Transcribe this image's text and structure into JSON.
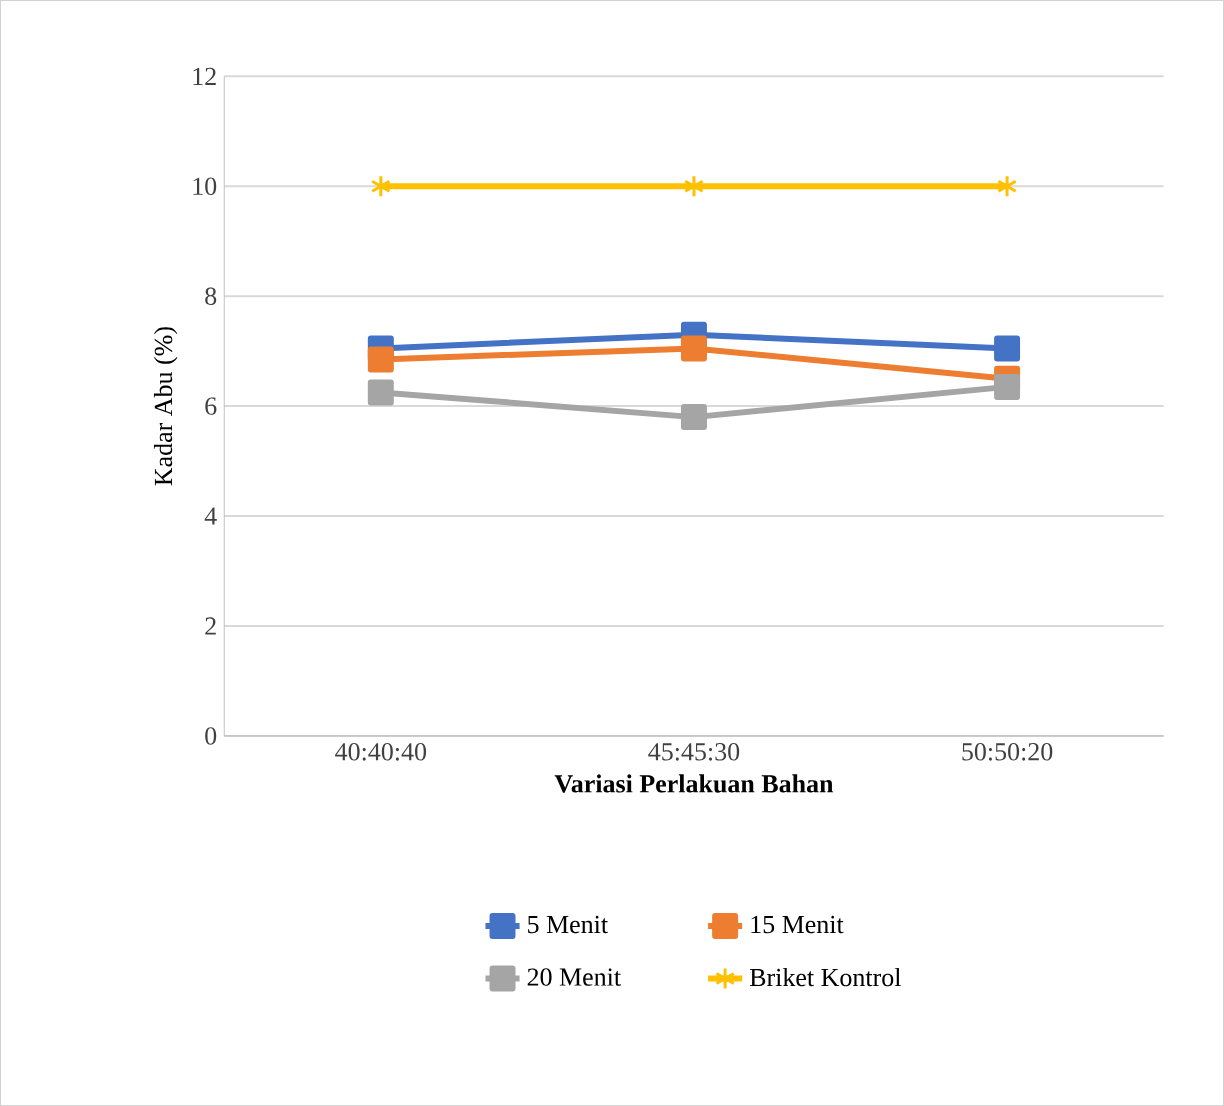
{
  "chart_data": {
    "type": "line",
    "xlabel": "Variasi Perlakuan Bahan",
    "ylabel": "Kadar Abu (%)",
    "categories": [
      "40:40:40",
      "45:45:30",
      "50:50:20"
    ],
    "series": [
      {
        "name": "5 Menit",
        "color": "#4472c4",
        "values": [
          7.05,
          7.3,
          7.05
        ],
        "marker": "square"
      },
      {
        "name": "15 Menit",
        "color": "#ed7d31",
        "values": [
          6.85,
          7.05,
          6.5
        ],
        "marker": "square"
      },
      {
        "name": "20 Menit",
        "color": "#a5a5a5",
        "values": [
          6.25,
          5.8,
          6.35
        ],
        "marker": "square"
      },
      {
        "name": "Briket Kontrol",
        "color": "#ffc000",
        "values": [
          10,
          10,
          10
        ],
        "marker": "cross"
      }
    ],
    "ylim": [
      0,
      12
    ],
    "yticks": [
      0,
      2,
      4,
      6,
      8,
      10,
      12
    ],
    "grid": "y",
    "legend": "bottom"
  }
}
